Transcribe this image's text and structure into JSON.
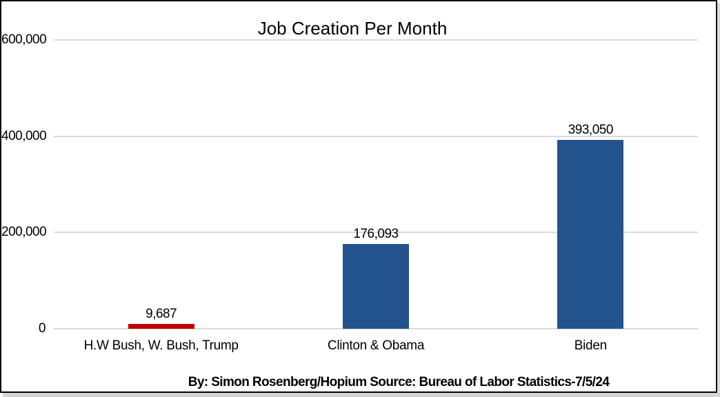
{
  "chart_data": {
    "type": "bar",
    "title": "Job Creation Per Month",
    "categories": [
      "H.W Bush, W. Bush, Trump",
      "Clinton & Obama",
      "Biden"
    ],
    "values": [
      9687,
      176093,
      393050
    ],
    "value_labels": [
      "9,687",
      "176,093",
      "393,050"
    ],
    "bar_colors": [
      "#c00000",
      "#22538d",
      "#22538d"
    ],
    "xlabel": "",
    "ylabel": "",
    "ylim": [
      0,
      600000
    ],
    "yticks": [
      0,
      200000,
      400000,
      600000
    ],
    "ytick_labels": [
      "0",
      "200,000",
      "400,000",
      "600,000"
    ],
    "grid": "horizontal",
    "gridline_color": "#dadada",
    "legend": "none"
  },
  "caption": {
    "text": "By: Simon Rosenberg/Hopium Source: Bureau of Labor Statistics-7/5/24"
  },
  "frame": {
    "border_color": "#000000",
    "background_color": "#ffffff"
  }
}
